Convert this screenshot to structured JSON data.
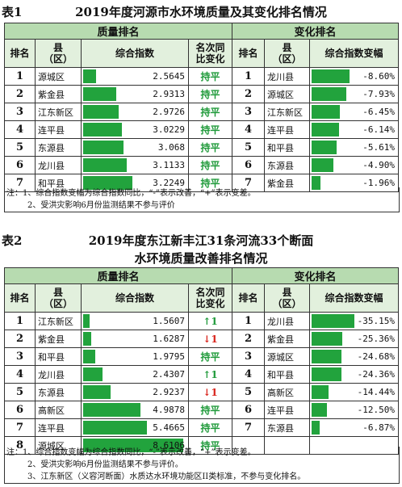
{
  "table1": {
    "label": "表1",
    "title": "2019年度河源市水环境质量及其变化排名情况",
    "group_quality": "质量排名",
    "group_change": "变化排名",
    "headers": {
      "rank": "排名",
      "county_1": "县",
      "county_2": "（区）",
      "index": "综合指数",
      "change_1": "名次同",
      "change_2": "比变化",
      "index_change": "综合指数变幅"
    },
    "quality": [
      {
        "rank": "1",
        "county": "源城区",
        "value": "2.5645",
        "change": "持平",
        "bar": 0.13
      },
      {
        "rank": "2",
        "county": "紫金县",
        "value": "2.9313",
        "change": "持平",
        "bar": 0.33
      },
      {
        "rank": "3",
        "county": "江东新区",
        "value": "2.9726",
        "change": "持平",
        "bar": 0.35
      },
      {
        "rank": "4",
        "county": "连平县",
        "value": "3.0229",
        "change": "持平",
        "bar": 0.38
      },
      {
        "rank": "5",
        "county": "东源县",
        "value": "3.068",
        "change": "持平",
        "bar": 0.4
      },
      {
        "rank": "6",
        "county": "龙川县",
        "value": "3.1133",
        "change": "持平",
        "bar": 0.43
      },
      {
        "rank": "7",
        "county": "和平县",
        "value": "3.2249",
        "change": "持平",
        "bar": 0.49
      }
    ],
    "change": [
      {
        "rank": "1",
        "county": "龙川县",
        "value": "-8.60%",
        "bar": 0.86
      },
      {
        "rank": "2",
        "county": "源城区",
        "value": "-7.93%",
        "bar": 0.79
      },
      {
        "rank": "3",
        "county": "江东新区",
        "value": "-6.45%",
        "bar": 0.645
      },
      {
        "rank": "4",
        "county": "连平县",
        "value": "-6.14%",
        "bar": 0.614
      },
      {
        "rank": "5",
        "county": "和平县",
        "value": "-5.61%",
        "bar": 0.561
      },
      {
        "rank": "6",
        "county": "东源县",
        "value": "-4.90%",
        "bar": 0.49
      },
      {
        "rank": "7",
        "county": "紫金县",
        "value": "-1.96%",
        "bar": 0.196
      }
    ],
    "notes": [
      "注：1、综合指数变幅为综合指数同比，“-”表示改善，“+”表示变差。",
      "2、受洪灾影响6月份监测结果不参与评价"
    ]
  },
  "table2": {
    "label": "表2",
    "title_1": "2019年度东江新丰江31条河流33个断面",
    "title_2": "水环境质量改善排名情况",
    "group_quality": "质量排名",
    "group_change": "变化排名",
    "headers": {
      "rank": "排名",
      "county_1": "县",
      "county_2": "（区）",
      "index": "综合指数",
      "change_1": "名次同",
      "change_2": "比变化",
      "index_change": "综合指数变幅"
    },
    "quality": [
      {
        "rank": "1",
        "county": "江东新区",
        "value": "1.5607",
        "change": "↑1",
        "dir": "up",
        "bar": 0.06
      },
      {
        "rank": "2",
        "county": "紫金县",
        "value": "1.6287",
        "change": "↓1",
        "dir": "dn",
        "bar": 0.08
      },
      {
        "rank": "3",
        "county": "和平县",
        "value": "1.9795",
        "change": "持平",
        "dir": "flat",
        "bar": 0.12
      },
      {
        "rank": "4",
        "county": "龙川县",
        "value": "2.4307",
        "change": "↑1",
        "dir": "up",
        "bar": 0.19
      },
      {
        "rank": "5",
        "county": "东源县",
        "value": "2.9237",
        "change": "↓1",
        "dir": "dn",
        "bar": 0.27
      },
      {
        "rank": "6",
        "county": "高新区",
        "value": "4.9878",
        "change": "持平",
        "dir": "flat",
        "bar": 0.57
      },
      {
        "rank": "7",
        "county": "连平县",
        "value": "5.4665",
        "change": "持平",
        "dir": "flat",
        "bar": 0.63
      },
      {
        "rank": "8",
        "county": "源城区",
        "value": "8.6106",
        "change": "持平",
        "dir": "flat",
        "bar": 0.99
      }
    ],
    "change": [
      {
        "rank": "1",
        "county": "龙川县",
        "value": "-35.15%",
        "bar": 0.96
      },
      {
        "rank": "2",
        "county": "紫金县",
        "value": "-25.36%",
        "bar": 0.69
      },
      {
        "rank": "3",
        "county": "源城区",
        "value": "-24.68%",
        "bar": 0.67
      },
      {
        "rank": "4",
        "county": "和平县",
        "value": "-24.36%",
        "bar": 0.665
      },
      {
        "rank": "5",
        "county": "高新区",
        "value": "-14.44%",
        "bar": 0.39
      },
      {
        "rank": "6",
        "county": "连平县",
        "value": "-12.50%",
        "bar": 0.34
      },
      {
        "rank": "7",
        "county": "东源县",
        "value": "-6.87%",
        "bar": 0.19
      }
    ],
    "notes": [
      "注：1、综合指数变幅为综合指数同比，“-”表示改善，“+”表示变差。",
      "2、受洪灾影响6月份监测结果不参与评价。",
      "3、江东新区（义容河断面）水质达水环境功能区II类标准，不参与变化排名。"
    ]
  }
}
